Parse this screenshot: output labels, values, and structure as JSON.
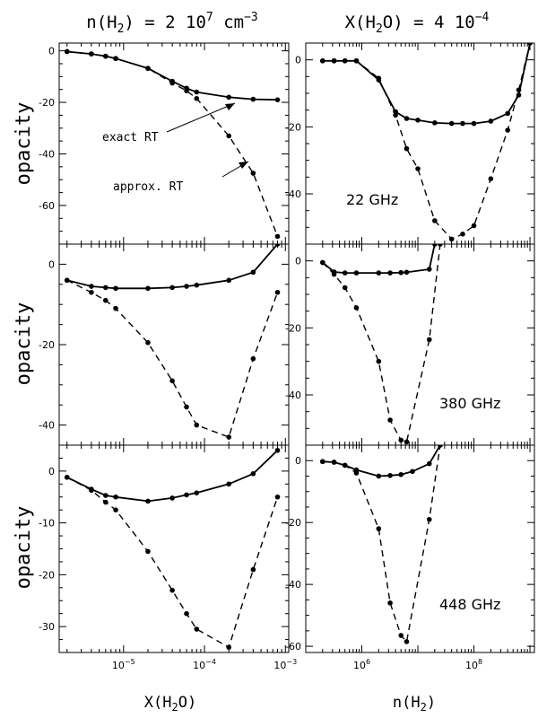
{
  "chart_data": {
    "type": "line",
    "titles": {
      "left_main": "n(H",
      "left_sub": "2",
      "left_rest": ") = 2 10",
      "left_sup": "7",
      "left_unit": " cm",
      "left_unit_sup": "−3",
      "right_main": "X(H",
      "right_sub": "2",
      "right_rest": "O) = 4 10",
      "right_sup": "−4"
    },
    "xlabels": {
      "left_main": "X(H",
      "left_sub": "2",
      "left_rest": "O)",
      "right_main": "n(H",
      "right_sub": "2",
      "right_rest": ")"
    },
    "ylabel": "opacity",
    "annotations": {
      "exact": "exact RT",
      "approx": "approx. RT"
    },
    "xticks_left": [
      {
        "mant": "10",
        "exp": "−5",
        "value": 1e-05
      },
      {
        "mant": "10",
        "exp": "−4",
        "value": 0.0001
      },
      {
        "mant": "10",
        "exp": "−3",
        "value": 0.001
      }
    ],
    "xticks_right": [
      {
        "mant": "10",
        "exp": "6",
        "value": 1000000.0
      },
      {
        "mant": "10",
        "exp": "8",
        "value": 100000000.0
      }
    ],
    "line_styles": {
      "solid": "exact RT",
      "dashed": "approx. RT"
    },
    "panels": [
      {
        "id": "left-22",
        "xscale": "log",
        "xlim": [
          1.6e-06,
          0.0011
        ],
        "ylim": [
          -75,
          3
        ],
        "yticks": [
          0,
          -20,
          -40,
          -60
        ],
        "label": "",
        "series": [
          {
            "name": "exact RT",
            "style": "solid",
            "points": [
              [
                2e-06,
                -0.3
              ],
              [
                4e-06,
                -1.2
              ],
              [
                6e-06,
                -2.1
              ],
              [
                8e-06,
                -3
              ],
              [
                2e-05,
                -6.8
              ],
              [
                4e-05,
                -11.8
              ],
              [
                6e-05,
                -14.5
              ],
              [
                8e-05,
                -16
              ],
              [
                0.0002,
                -18
              ],
              [
                0.0004,
                -18.8
              ],
              [
                0.0008,
                -19
              ]
            ]
          },
          {
            "name": "approx. RT",
            "style": "dashed",
            "points": [
              [
                2e-06,
                -0.3
              ],
              [
                4e-06,
                -1.2
              ],
              [
                6e-06,
                -2.1
              ],
              [
                8e-06,
                -3
              ],
              [
                2e-05,
                -6.8
              ],
              [
                4e-05,
                -12.5
              ],
              [
                6e-05,
                -15.5
              ],
              [
                8e-05,
                -18.5
              ],
              [
                0.0002,
                -33
              ],
              [
                0.0004,
                -47.5
              ],
              [
                0.0008,
                -72
              ]
            ]
          }
        ]
      },
      {
        "id": "right-22",
        "xscale": "log",
        "xlim": [
          100000.0,
          1200000000.0
        ],
        "ylim": [
          -55,
          5
        ],
        "yticks": [
          0,
          -20,
          -40
        ],
        "label": "22 GHz",
        "series": [
          {
            "name": "exact RT",
            "style": "solid",
            "points": [
              [
                200000.0,
                -0.3
              ],
              [
                320000.0,
                -0.3
              ],
              [
                500000.0,
                -0.3
              ],
              [
                800000.0,
                -0.3
              ],
              [
                2000000.0,
                -6
              ],
              [
                4000000.0,
                -15.5
              ],
              [
                6300000.0,
                -17.5
              ],
              [
                10000000.0,
                -18
              ],
              [
                20000000.0,
                -18.8
              ],
              [
                40000000.0,
                -19
              ],
              [
                63000000.0,
                -19
              ],
              [
                100000000.0,
                -19
              ],
              [
                200000000.0,
                -18.3
              ],
              [
                400000000.0,
                -16
              ],
              [
                630000000.0,
                -10.5
              ],
              [
                1000000000.0,
                5
              ]
            ]
          },
          {
            "name": "approx. RT",
            "style": "dashed",
            "points": [
              [
                200000.0,
                -0.3
              ],
              [
                320000.0,
                -0.3
              ],
              [
                500000.0,
                -0.3
              ],
              [
                800000.0,
                -0.3
              ],
              [
                2000000.0,
                -5.5
              ],
              [
                4000000.0,
                -16.5
              ],
              [
                6300000.0,
                -26.5
              ],
              [
                10000000.0,
                -32.5
              ],
              [
                20000000.0,
                -48
              ],
              [
                40000000.0,
                -53.5
              ],
              [
                63000000.0,
                -52
              ],
              [
                100000000.0,
                -49.5
              ],
              [
                200000000.0,
                -35.5
              ],
              [
                400000000.0,
                -21
              ],
              [
                630000000.0,
                -9
              ],
              [
                1000000000.0,
                5
              ]
            ]
          }
        ]
      },
      {
        "id": "left-380",
        "xscale": "log",
        "xlim": [
          1.6e-06,
          0.0011
        ],
        "ylim": [
          -45,
          5
        ],
        "yticks": [
          0,
          -20,
          -40
        ],
        "label": "",
        "series": [
          {
            "name": "exact RT",
            "style": "solid",
            "points": [
              [
                2e-06,
                -4
              ],
              [
                4e-06,
                -5.5
              ],
              [
                6e-06,
                -5.8
              ],
              [
                8e-06,
                -6
              ],
              [
                2e-05,
                -6
              ],
              [
                4e-05,
                -5.8
              ],
              [
                6e-05,
                -5.5
              ],
              [
                8e-05,
                -5.2
              ],
              [
                0.0002,
                -4
              ],
              [
                0.0004,
                -2
              ],
              [
                0.0008,
                5
              ]
            ]
          },
          {
            "name": "approx. RT",
            "style": "dashed",
            "points": [
              [
                2e-06,
                -4
              ],
              [
                4e-06,
                -7
              ],
              [
                6e-06,
                -9
              ],
              [
                8e-06,
                -11
              ],
              [
                2e-05,
                -19.5
              ],
              [
                4e-05,
                -29
              ],
              [
                6e-05,
                -35.5
              ],
              [
                8e-05,
                -40
              ],
              [
                0.0002,
                -43
              ],
              [
                0.0004,
                -23.5
              ],
              [
                0.0008,
                -7
              ]
            ]
          }
        ]
      },
      {
        "id": "right-380",
        "xscale": "log",
        "xlim": [
          100000.0,
          1200000000.0
        ],
        "ylim": [
          -55,
          5
        ],
        "yticks": [
          0,
          -20,
          -40
        ],
        "label": "380 GHz",
        "series": [
          {
            "name": "exact RT",
            "style": "solid",
            "points": [
              [
                200000.0,
                -0.5
              ],
              [
                320000.0,
                -3.3
              ],
              [
                500000.0,
                -3.6
              ],
              [
                800000.0,
                -3.6
              ],
              [
                2000000.0,
                -3.6
              ],
              [
                3200000.0,
                -3.6
              ],
              [
                5000000.0,
                -3.5
              ],
              [
                6300000.0,
                -3.4
              ],
              [
                16000000.0,
                -2.5
              ],
              [
                20000000.0,
                5
              ]
            ]
          },
          {
            "name": "approx. RT",
            "style": "dashed",
            "points": [
              [
                200000.0,
                -0.5
              ],
              [
                320000.0,
                -4
              ],
              [
                500000.0,
                -8
              ],
              [
                800000.0,
                -14
              ],
              [
                2000000.0,
                -30
              ],
              [
                3200000.0,
                -47.5
              ],
              [
                5000000.0,
                -53.5
              ],
              [
                6300000.0,
                -54
              ],
              [
                16000000.0,
                -23.5
              ],
              [
                25000000.0,
                5
              ]
            ]
          }
        ]
      },
      {
        "id": "left-448",
        "xscale": "log",
        "xlim": [
          1.6e-06,
          0.0011
        ],
        "ylim": [
          -35,
          5
        ],
        "yticks": [
          0,
          -10,
          -20,
          -30
        ],
        "label": "",
        "series": [
          {
            "name": "exact RT",
            "style": "solid",
            "points": [
              [
                2e-06,
                -1.2
              ],
              [
                4e-06,
                -3.5
              ],
              [
                6e-06,
                -4.7
              ],
              [
                8e-06,
                -5
              ],
              [
                2e-05,
                -5.8
              ],
              [
                4e-05,
                -5.2
              ],
              [
                6e-05,
                -4.6
              ],
              [
                8e-05,
                -4.2
              ],
              [
                0.0002,
                -2.5
              ],
              [
                0.0004,
                -0.5
              ],
              [
                0.0008,
                4
              ]
            ]
          },
          {
            "name": "approx. RT",
            "style": "dashed",
            "points": [
              [
                2e-06,
                -1.2
              ],
              [
                4e-06,
                -3.7
              ],
              [
                6e-06,
                -6
              ],
              [
                8e-06,
                -7.5
              ],
              [
                2e-05,
                -15.5
              ],
              [
                4e-05,
                -23
              ],
              [
                6e-05,
                -27.5
              ],
              [
                8e-05,
                -30.5
              ],
              [
                0.0002,
                -34
              ],
              [
                0.0004,
                -19
              ],
              [
                0.0008,
                -5
              ]
            ]
          }
        ]
      },
      {
        "id": "right-448",
        "xscale": "log",
        "xlim": [
          100000.0,
          1200000000.0
        ],
        "ylim": [
          -62,
          5
        ],
        "yticks": [
          0,
          -20,
          -40,
          -60
        ],
        "label": "448 GHz",
        "series": [
          {
            "name": "exact RT",
            "style": "solid",
            "points": [
              [
                200000.0,
                -0.3
              ],
              [
                320000.0,
                -0.5
              ],
              [
                500000.0,
                -1.5
              ],
              [
                800000.0,
                -3
              ],
              [
                2000000.0,
                -5
              ],
              [
                3200000.0,
                -4.8
              ],
              [
                5000000.0,
                -4.5
              ],
              [
                8000000.0,
                -3.5
              ],
              [
                16000000.0,
                -1
              ],
              [
                25000000.0,
                5
              ]
            ]
          },
          {
            "name": "approx. RT",
            "style": "dashed",
            "points": [
              [
                200000.0,
                -0.3
              ],
              [
                320000.0,
                -0.5
              ],
              [
                500000.0,
                -1.5
              ],
              [
                800000.0,
                -4
              ],
              [
                2000000.0,
                -22
              ],
              [
                3200000.0,
                -46
              ],
              [
                5000000.0,
                -56.5
              ],
              [
                6300000.0,
                -58.5
              ],
              [
                16000000.0,
                -19
              ],
              [
                25000000.0,
                5
              ]
            ]
          }
        ]
      }
    ]
  }
}
